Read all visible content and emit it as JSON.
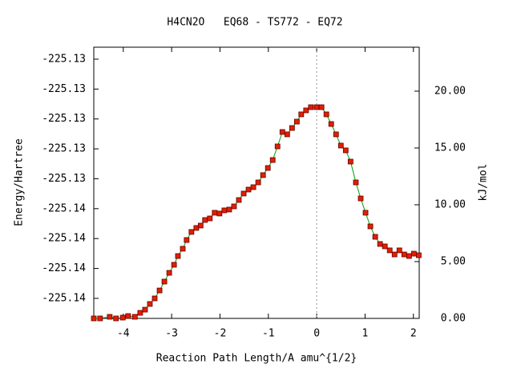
{
  "chart_data": {
    "type": "line",
    "title": "H4CN2O   EQ68 - TS772 - EQ72",
    "xlabel": "Reaction Path Length/A amu^{1/2}",
    "ylabel": "Energy/Hartree",
    "y2label": "kJ/mol",
    "xlim": [
      -4.61,
      2.12
    ],
    "xticks": [
      -4,
      -3,
      -2,
      -1,
      0,
      1,
      2
    ],
    "ylim": [
      -225.13967,
      -225.1306
    ],
    "yticks": [
      {
        "value": -225.131,
        "label": "-225.13"
      },
      {
        "value": -225.132,
        "label": "-225.13"
      },
      {
        "value": -225.133,
        "label": "-225.13"
      },
      {
        "value": -225.134,
        "label": "-225.13"
      },
      {
        "value": -225.135,
        "label": "-225.13"
      },
      {
        "value": -225.136,
        "label": "-225.14"
      },
      {
        "value": -225.137,
        "label": "-225.14"
      },
      {
        "value": -225.138,
        "label": "-225.14"
      },
      {
        "value": -225.139,
        "label": "-225.14"
      }
    ],
    "y2lim": [
      0,
      23.87
    ],
    "y2ticks": [
      {
        "value": 0,
        "label": "0.00"
      },
      {
        "value": 5,
        "label": "5.00"
      },
      {
        "value": 10,
        "label": "10.00"
      },
      {
        "value": 15,
        "label": "15.00"
      },
      {
        "value": 20,
        "label": "20.00"
      }
    ],
    "vline": 0,
    "x": [
      -4.61,
      -4.48,
      -4.28,
      -4.15,
      -4.01,
      -3.9,
      -3.76,
      -3.65,
      -3.55,
      -3.45,
      -3.35,
      -3.25,
      -3.15,
      -3.05,
      -2.95,
      -2.87,
      -2.77,
      -2.69,
      -2.59,
      -2.49,
      -2.4,
      -2.31,
      -2.21,
      -2.11,
      -2.01,
      -1.91,
      -1.81,
      -1.71,
      -1.61,
      -1.51,
      -1.41,
      -1.31,
      -1.21,
      -1.11,
      -1.01,
      -0.91,
      -0.81,
      -0.71,
      -0.61,
      -0.51,
      -0.41,
      -0.32,
      -0.22,
      -0.12,
      0,
      0.1,
      0.2,
      0.3,
      0.4,
      0.5,
      0.6,
      0.7,
      0.81,
      0.91,
      1.01,
      1.11,
      1.21,
      1.31,
      1.41,
      1.51,
      1.61,
      1.71,
      1.81,
      1.91,
      2.01,
      2.11
    ],
    "series": [
      {
        "axis": "y2",
        "color": "#00a000",
        "marker_color": "#e02000",
        "values": [
          0,
          0,
          0.14,
          0,
          0.07,
          0.21,
          0.14,
          0.49,
          0.77,
          1.27,
          1.76,
          2.46,
          3.24,
          4.01,
          4.72,
          5.49,
          6.13,
          6.9,
          7.61,
          7.96,
          8.17,
          8.66,
          8.8,
          9.3,
          9.23,
          9.51,
          9.58,
          9.86,
          10.42,
          10.99,
          11.34,
          11.55,
          11.97,
          12.61,
          13.24,
          13.94,
          15.14,
          16.41,
          16.2,
          16.76,
          17.32,
          17.96,
          18.31,
          18.59,
          18.59,
          18.59,
          17.96,
          17.11,
          16.2,
          15.21,
          14.79,
          13.8,
          11.97,
          10.56,
          9.3,
          8.1,
          7.18,
          6.55,
          6.34,
          5.99,
          5.63,
          5.99,
          5.63,
          5.49,
          5.7,
          5.56
        ]
      }
    ]
  }
}
